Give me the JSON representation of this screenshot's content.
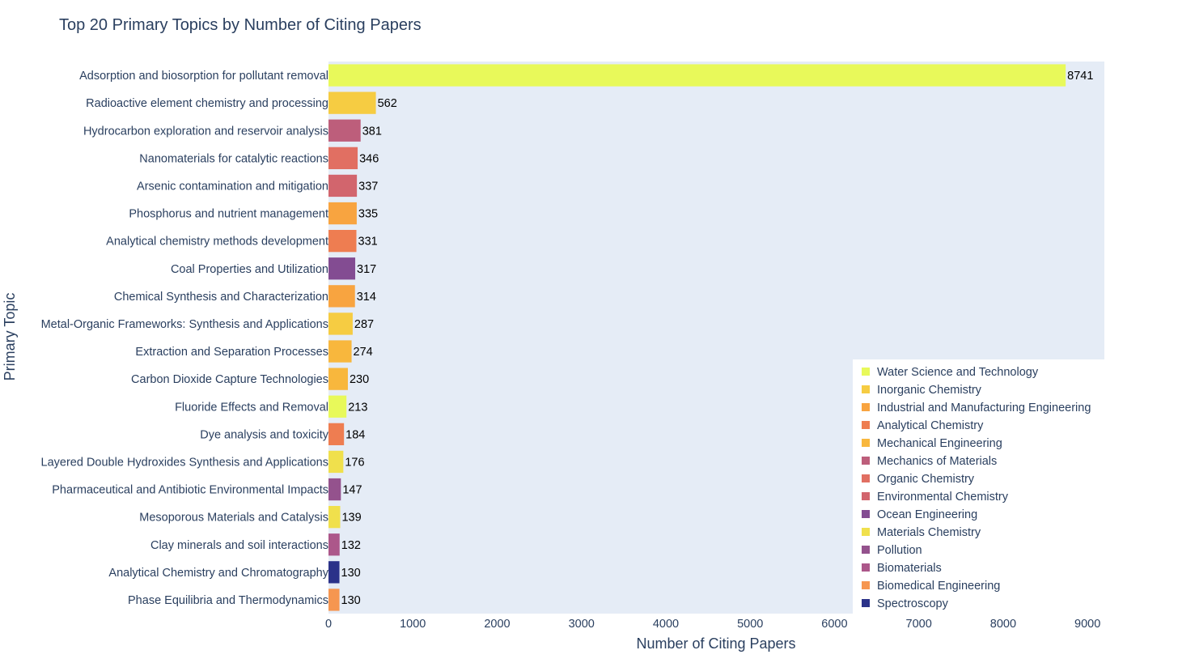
{
  "chart_data": {
    "type": "bar",
    "orientation": "horizontal",
    "title": "Top 20 Primary Topics by Number of Citing Papers",
    "xlabel": "Number of Citing Papers",
    "ylabel": "Primary Topic",
    "xlim": [
      0,
      9200
    ],
    "xticks": [
      0,
      1000,
      2000,
      3000,
      4000,
      5000,
      6000,
      7000,
      8000,
      9000
    ],
    "legend_position": "bottom-right",
    "bars": [
      {
        "label": "Adsorption and biosorption for pollutant removal",
        "value": 8741,
        "field": "Water Science and Technology",
        "color": "#e8f95a"
      },
      {
        "label": "Radioactive element chemistry and processing",
        "value": 562,
        "field": "Inorganic Chemistry",
        "color": "#f6cc42"
      },
      {
        "label": "Hydrocarbon exploration and reservoir analysis",
        "value": 381,
        "field": "Mechanics of Materials",
        "color": "#bd5e7b"
      },
      {
        "label": "Nanomaterials for catalytic reactions",
        "value": 346,
        "field": "Organic Chemistry",
        "color": "#e16f62"
      },
      {
        "label": "Arsenic contamination and mitigation",
        "value": 337,
        "field": "Environmental Chemistry",
        "color": "#d2656d"
      },
      {
        "label": "Phosphorus and nutrient management",
        "value": 335,
        "field": "Industrial and Manufacturing Engineering",
        "color": "#f8a440"
      },
      {
        "label": "Analytical chemistry methods development",
        "value": 331,
        "field": "Analytical Chemistry",
        "color": "#ee7d51"
      },
      {
        "label": "Coal Properties and Utilization",
        "value": 317,
        "field": "Ocean Engineering",
        "color": "#834c92"
      },
      {
        "label": "Chemical Synthesis and Characterization",
        "value": 314,
        "field": "Industrial and Manufacturing Engineering",
        "color": "#f8a440"
      },
      {
        "label": "Metal-Organic Frameworks: Synthesis and Applications",
        "value": 287,
        "field": "Inorganic Chemistry",
        "color": "#f6cc42"
      },
      {
        "label": "Extraction and Separation Processes",
        "value": 274,
        "field": "Mechanical Engineering",
        "color": "#f8b73d"
      },
      {
        "label": "Carbon Dioxide Capture Technologies",
        "value": 230,
        "field": "Mechanical Engineering",
        "color": "#f8b73d"
      },
      {
        "label": "Fluoride Effects and Removal",
        "value": 213,
        "field": "Water Science and Technology",
        "color": "#e8f95a"
      },
      {
        "label": "Dye analysis and toxicity",
        "value": 184,
        "field": "Analytical Chemistry",
        "color": "#ee7d51"
      },
      {
        "label": "Layered Double Hydroxides Synthesis and Applications",
        "value": 176,
        "field": "Materials Chemistry",
        "color": "#f0e04c"
      },
      {
        "label": "Pharmaceutical and Antibiotic Environmental Impacts",
        "value": 147,
        "field": "Pollution",
        "color": "#94528d"
      },
      {
        "label": "Mesoporous Materials and Catalysis",
        "value": 139,
        "field": "Materials Chemistry",
        "color": "#f0e04c"
      },
      {
        "label": "Clay minerals and soil interactions",
        "value": 132,
        "field": "Biomaterials",
        "color": "#ac578a"
      },
      {
        "label": "Analytical Chemistry and Chromatography",
        "value": 130,
        "field": "Spectroscopy",
        "color": "#2b3289"
      },
      {
        "label": "Phase Equilibria and Thermodynamics",
        "value": 130,
        "field": "Biomedical Engineering",
        "color": "#f69650"
      }
    ],
    "legend": [
      {
        "name": "Water Science and Technology",
        "color": "#e8f95a"
      },
      {
        "name": "Inorganic Chemistry",
        "color": "#f6cc42"
      },
      {
        "name": "Industrial and Manufacturing Engineering",
        "color": "#f8a440"
      },
      {
        "name": "Analytical Chemistry",
        "color": "#ee7d51"
      },
      {
        "name": "Mechanical Engineering",
        "color": "#f8b73d"
      },
      {
        "name": "Mechanics of Materials",
        "color": "#bd5e7b"
      },
      {
        "name": "Organic Chemistry",
        "color": "#e16f62"
      },
      {
        "name": "Environmental Chemistry",
        "color": "#d2656d"
      },
      {
        "name": "Ocean Engineering",
        "color": "#834c92"
      },
      {
        "name": "Materials Chemistry",
        "color": "#f0e04c"
      },
      {
        "name": "Pollution",
        "color": "#94528d"
      },
      {
        "name": "Biomaterials",
        "color": "#ac578a"
      },
      {
        "name": "Biomedical Engineering",
        "color": "#f69650"
      },
      {
        "name": "Spectroscopy",
        "color": "#2b3289"
      }
    ],
    "plot_background": "#e5ecf6"
  }
}
